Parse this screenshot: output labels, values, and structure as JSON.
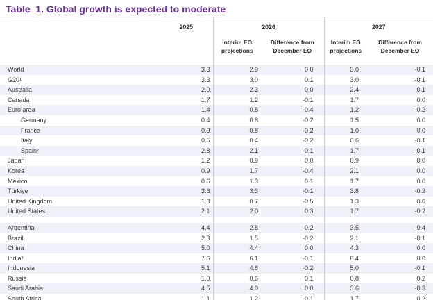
{
  "colors": {
    "title_purple": "#7030A0",
    "row_stripe": "#EEF1F8",
    "column_divider_gray": "#D4D4D4"
  },
  "chart_data": {
    "type": "table",
    "title": "Table  1. Global growth is expected to moderate",
    "column_groups": [
      {
        "label": "2025",
        "subcolumns": []
      },
      {
        "label": "2026",
        "subcolumns": [
          "Interim EO projections",
          "Difference from December EO"
        ]
      },
      {
        "label": "2027",
        "subcolumns": [
          "Interim EO projections",
          "Difference from December EO"
        ]
      }
    ],
    "sections": [
      {
        "rows": [
          {
            "label": "World",
            "indent": false,
            "values": [
              "3.3",
              "2.9",
              "0.0",
              "3.0",
              "-0.1"
            ]
          },
          {
            "label": "G20¹",
            "indent": false,
            "values": [
              "3.3",
              "3.0",
              "0.1",
              "3.0",
              "-0.1"
            ]
          },
          {
            "label": "Australia",
            "indent": false,
            "values": [
              "2.0",
              "2.3",
              "0.0",
              "2.4",
              "0.1"
            ]
          },
          {
            "label": "Canada",
            "indent": false,
            "values": [
              "1.7",
              "1.2",
              "-0.1",
              "1.7",
              "0.0"
            ]
          },
          {
            "label": "Euro area",
            "indent": false,
            "values": [
              "1.4",
              "0.8",
              "-0.4",
              "1.2",
              "-0.2"
            ]
          },
          {
            "label": "Germany",
            "indent": true,
            "values": [
              "0.4",
              "0.8",
              "-0.2",
              "1.5",
              "0.0"
            ]
          },
          {
            "label": "France",
            "indent": true,
            "values": [
              "0.9",
              "0.8",
              "-0.2",
              "1.0",
              "0.0"
            ]
          },
          {
            "label": "Italy",
            "indent": true,
            "values": [
              "0.5",
              "0.4",
              "-0.2",
              "0.6",
              "-0.1"
            ]
          },
          {
            "label": "Spain²",
            "indent": true,
            "values": [
              "2.8",
              "2.1",
              "-0.1",
              "1.7",
              "-0.1"
            ]
          },
          {
            "label": "Japan",
            "indent": false,
            "values": [
              "1.2",
              "0.9",
              "0.0",
              "0.9",
              "0.0"
            ]
          },
          {
            "label": "Korea",
            "indent": false,
            "values": [
              "0.9",
              "1.7",
              "-0.4",
              "2.1",
              "0.0"
            ]
          },
          {
            "label": "Mexico",
            "indent": false,
            "values": [
              "0.6",
              "1.3",
              "0.1",
              "1.7",
              "0.0"
            ]
          },
          {
            "label": "Türkiye",
            "indent": false,
            "values": [
              "3.6",
              "3.3",
              "-0.1",
              "3.8",
              "-0.2"
            ]
          },
          {
            "label": "United Kingdom",
            "indent": false,
            "values": [
              "1.3",
              "0.7",
              "-0.5",
              "1.3",
              "0.0"
            ]
          },
          {
            "label": "United States",
            "indent": false,
            "values": [
              "2.1",
              "2.0",
              "0.3",
              "1.7",
              "-0.2"
            ]
          }
        ]
      },
      {
        "rows": [
          {
            "label": "Argentina",
            "indent": false,
            "values": [
              "4.4",
              "2.8",
              "-0.2",
              "3.5",
              "-0.4"
            ]
          },
          {
            "label": "Brazil",
            "indent": false,
            "values": [
              "2.3",
              "1.5",
              "-0.2",
              "2.1",
              "-0.1"
            ]
          },
          {
            "label": "China",
            "indent": false,
            "values": [
              "5.0",
              "4.4",
              "0.0",
              "4.3",
              "0.0"
            ]
          },
          {
            "label": "India³",
            "indent": false,
            "values": [
              "7.6",
              "6.1",
              "-0.1",
              "6.4",
              "0.0"
            ]
          },
          {
            "label": "Indonesia",
            "indent": false,
            "values": [
              "5.1",
              "4.8",
              "-0.2",
              "5.0",
              "-0.1"
            ]
          },
          {
            "label": "Russia",
            "indent": false,
            "values": [
              "1.0",
              "0.6",
              "0.1",
              "0.8",
              "0.2"
            ]
          },
          {
            "label": "Saudi Arabia",
            "indent": false,
            "values": [
              "4.5",
              "4.0",
              "0.0",
              "3.6",
              "-0.3"
            ]
          },
          {
            "label": "South Africa",
            "indent": false,
            "values": [
              "1.1",
              "1.2",
              "-0.1",
              "1.7",
              "0.2"
            ]
          }
        ]
      }
    ]
  }
}
